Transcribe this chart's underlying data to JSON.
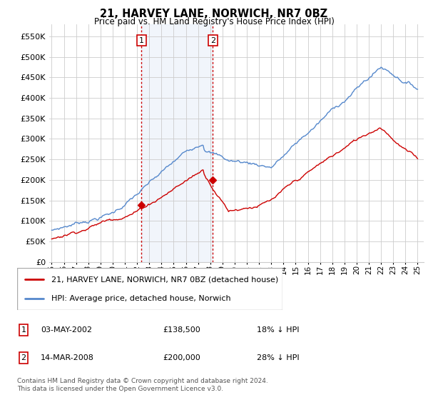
{
  "title": "21, HARVEY LANE, NORWICH, NR7 0BZ",
  "subtitle": "Price paid vs. HM Land Registry's House Price Index (HPI)",
  "ylim": [
    0,
    580000
  ],
  "yticks": [
    0,
    50000,
    100000,
    150000,
    200000,
    250000,
    300000,
    350000,
    400000,
    450000,
    500000,
    550000
  ],
  "ytick_labels": [
    "£0",
    "£50K",
    "£100K",
    "£150K",
    "£200K",
    "£250K",
    "£300K",
    "£350K",
    "£400K",
    "£450K",
    "£500K",
    "£550K"
  ],
  "hpi_color": "#5588cc",
  "price_color": "#cc0000",
  "marker1_x": 2002.37,
  "marker1_y": 138500,
  "marker2_x": 2008.21,
  "marker2_y": 200000,
  "marker1_label": "1",
  "marker2_label": "2",
  "annotation1": [
    "03-MAY-2002",
    "£138,500",
    "18% ↓ HPI"
  ],
  "annotation2": [
    "14-MAR-2008",
    "£200,000",
    "28% ↓ HPI"
  ],
  "legend_line1": "21, HARVEY LANE, NORWICH, NR7 0BZ (detached house)",
  "legend_line2": "HPI: Average price, detached house, Norwich",
  "footnote": "Contains HM Land Registry data © Crown copyright and database right 2024.\nThis data is licensed under the Open Government Licence v3.0.",
  "bg_shading": "#dce8f5",
  "plot_bg": "#ffffff",
  "grid_color": "#cccccc",
  "xlim_left": 1994.8,
  "xlim_right": 2025.5
}
